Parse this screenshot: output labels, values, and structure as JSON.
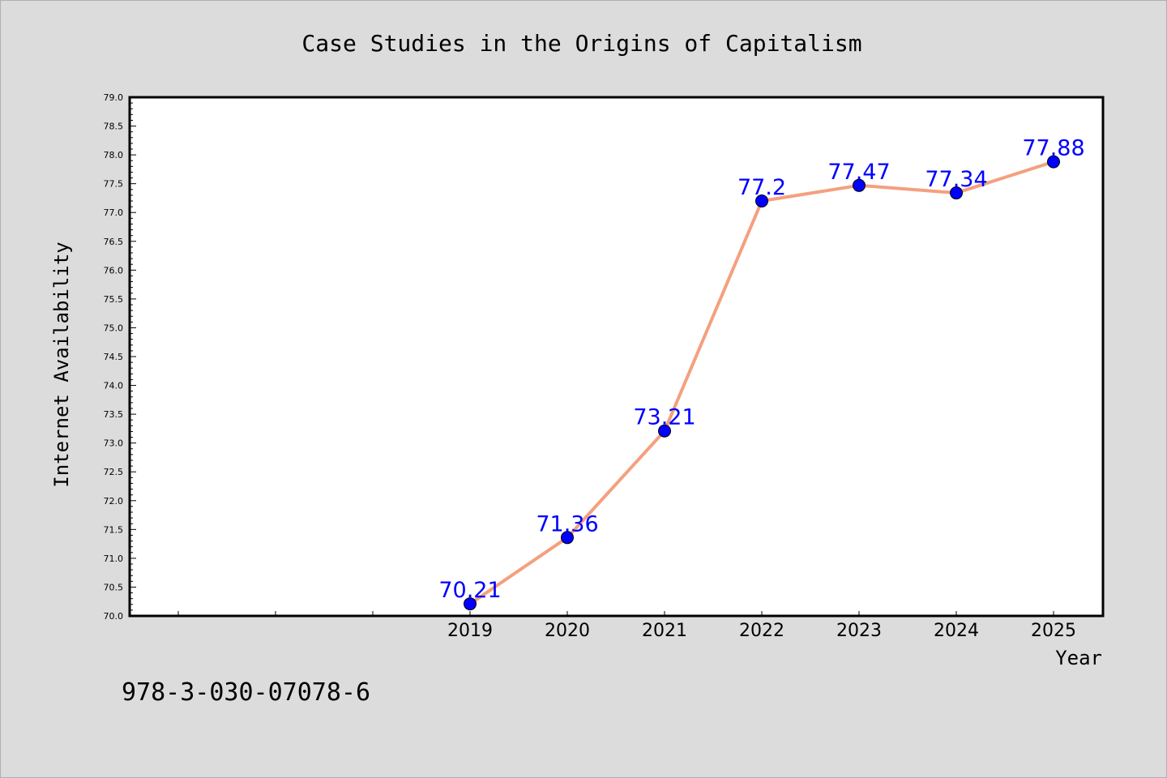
{
  "chart_data": {
    "type": "line",
    "title": "Case Studies in the Origins of Capitalism",
    "xlabel": "Year",
    "ylabel": "Internet Availability",
    "x": [
      "2019",
      "2020",
      "2021",
      "2022",
      "2023",
      "2024",
      "2025"
    ],
    "series": [
      {
        "values": [
          70.21,
          71.36,
          73.21,
          77.2,
          77.47,
          77.34,
          77.88
        ]
      }
    ],
    "data_labels": [
      "70.21",
      "71.36",
      "73.21",
      "77.2",
      "77.47",
      "77.34",
      "77.88"
    ],
    "ylim": [
      70.0,
      79.0
    ],
    "y_ticks": [
      "70.0",
      "70.5",
      "71.0",
      "71.5",
      "72.0",
      "72.5",
      "73.0",
      "73.5",
      "74.0",
      "74.5",
      "75.0",
      "75.5",
      "76.0",
      "76.5",
      "77.0",
      "77.5",
      "78.0",
      "78.5",
      "79.0"
    ],
    "grid": false,
    "legend": "none",
    "colors": {
      "line": "#f4a07f",
      "marker": "#0000ff",
      "data_label": "#0000ff",
      "background": "#dcdcdc",
      "plot_background": "#ffffff"
    }
  },
  "footer": {
    "isbn": "978-3-030-07078-6"
  }
}
